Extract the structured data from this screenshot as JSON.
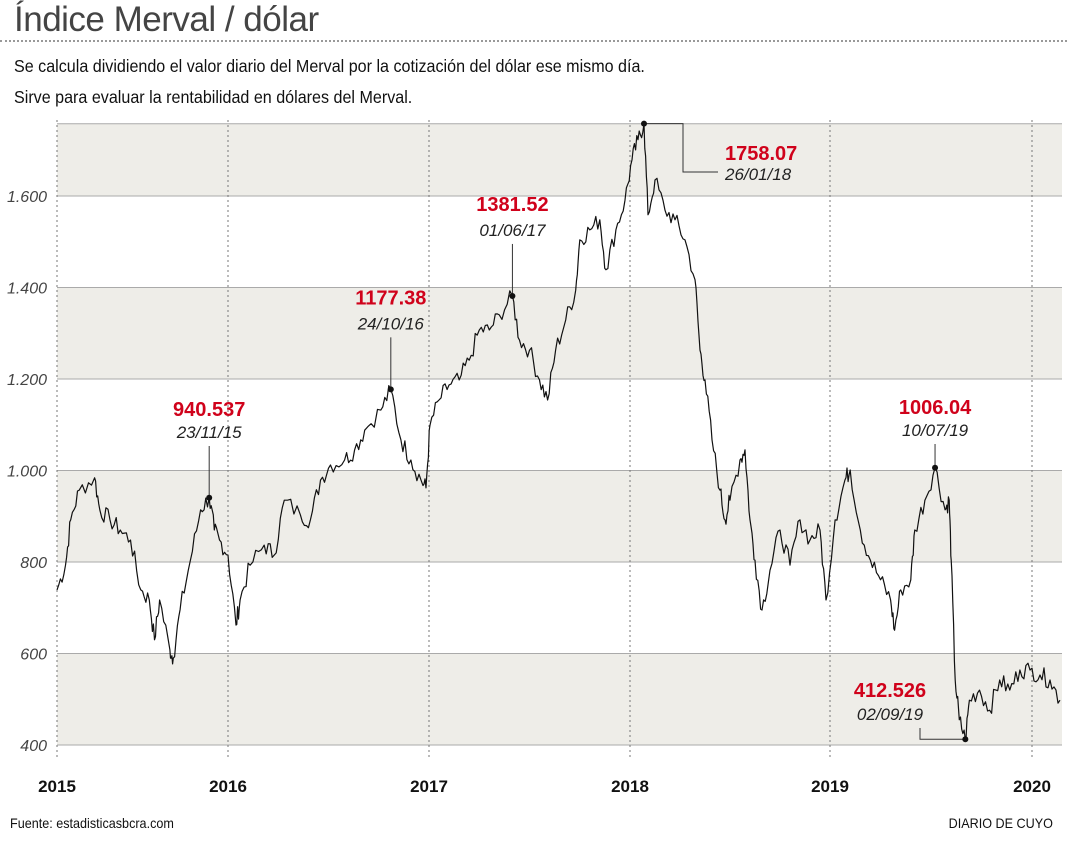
{
  "header": {
    "title": "Índice Merval / dólar",
    "subtitle_1": "Se calcula dividiendo el valor diario del Merval por la cotización del dólar ese mismo día.",
    "subtitle_2": "Sirve para evaluar la rentabilidad en dólares del Merval."
  },
  "footer": {
    "source": "Fuente: estadisticasbcra.com",
    "brand": "DIARIO DE CUYO"
  },
  "colors": {
    "band": "#eeede8",
    "line": "#111111",
    "highlight": "#d0021b"
  },
  "chart_data": {
    "type": "line",
    "title": "Índice Merval / dólar",
    "xlabel": "",
    "ylabel": "",
    "ylim": [
      400,
      1760
    ],
    "xlim": [
      2015.0,
      2020.14
    ],
    "grid": "vertical dotted lines at years; alternating horizontal bands",
    "y_ticks": [
      {
        "value": 400,
        "label": "400"
      },
      {
        "value": 600,
        "label": "600"
      },
      {
        "value": 800,
        "label": "800"
      },
      {
        "value": 1000,
        "label": "1.000"
      },
      {
        "value": 1200,
        "label": "1.200"
      },
      {
        "value": 1400,
        "label": "1.400"
      },
      {
        "value": 1600,
        "label": "1.600"
      }
    ],
    "x_ticks": [
      {
        "value": 2015,
        "label": "2015"
      },
      {
        "value": 2016,
        "label": "2016"
      },
      {
        "value": 2017,
        "label": "2017"
      },
      {
        "value": 2018,
        "label": "2018"
      },
      {
        "value": 2019,
        "label": "2019"
      },
      {
        "value": 2020,
        "label": "2020"
      }
    ],
    "bands": [
      [
        400,
        600
      ],
      [
        800,
        1000
      ],
      [
        1200,
        1400
      ],
      [
        1600,
        1760
      ]
    ],
    "series": [
      {
        "name": "Merval / dólar",
        "x": [
          2015.0,
          2015.05,
          2015.08,
          2015.13,
          2015.22,
          2015.25,
          2015.31,
          2015.37,
          2015.43,
          2015.49,
          2015.54,
          2015.57,
          2015.6,
          2015.66,
          2015.68,
          2015.72,
          2015.78,
          2015.84,
          2015.89,
          2015.92,
          2015.95,
          2016.0,
          2016.04,
          2016.06,
          2016.11,
          2016.18,
          2016.23,
          2016.28,
          2016.36,
          2016.41,
          2016.46,
          2016.51,
          2016.58,
          2016.63,
          2016.68,
          2016.76,
          2016.81,
          2016.86,
          2016.91,
          2016.96,
          2016.985,
          2017.005,
          2017.05,
          2017.1,
          2017.15,
          2017.2,
          2017.25,
          2017.3,
          2017.35,
          2017.415,
          2017.45,
          2017.5,
          2017.55,
          2017.59,
          2017.63,
          2017.68,
          2017.73,
          2017.75,
          2017.8,
          2017.85,
          2017.88,
          2017.93,
          2017.975,
          2018.01,
          2018.04,
          2018.07,
          2018.09,
          2018.125,
          2018.175,
          2018.225,
          2018.275,
          2018.325,
          2018.35,
          2018.375,
          2018.41,
          2018.45,
          2018.475,
          2018.5,
          2018.55,
          2018.575,
          2018.6,
          2018.625,
          2018.66,
          2018.7,
          2018.75,
          2018.8,
          2018.85,
          2018.9,
          2018.95,
          2018.98,
          2019.025,
          2019.074,
          2019.1,
          2019.15,
          2019.2,
          2019.25,
          2019.3,
          2019.32,
          2019.35,
          2019.4,
          2019.42,
          2019.47,
          2019.52,
          2019.57,
          2019.59,
          2019.6,
          2019.62,
          2019.64,
          2019.67,
          2019.69,
          2019.74,
          2019.79,
          2019.84,
          2019.89,
          2019.94,
          2019.99,
          2020.04,
          2020.09,
          2020.14
        ],
        "values": [
          739,
          793,
          892,
          957,
          984,
          914,
          892,
          870,
          848,
          739,
          717,
          630,
          717,
          608,
          590,
          696,
          804,
          914,
          940.537,
          870,
          848,
          815,
          662,
          717,
          793,
          837,
          815,
          935,
          903,
          892,
          979,
          1012,
          1023,
          1045,
          1088,
          1132,
          1177.38,
          1067,
          1023,
          979,
          962,
          1099,
          1154,
          1187,
          1198,
          1241,
          1307,
          1307,
          1340,
          1381.52,
          1285,
          1263,
          1198,
          1154,
          1263,
          1329,
          1394,
          1504,
          1526,
          1548,
          1439,
          1526,
          1591,
          1679,
          1723,
          1758.07,
          1559,
          1635,
          1569,
          1548,
          1504,
          1417,
          1263,
          1198,
          1067,
          957,
          892,
          935,
          1023,
          1045,
          892,
          804,
          695,
          782,
          870,
          793,
          892,
          848,
          870,
          717,
          892,
          979,
          1001,
          870,
          804,
          761,
          717,
          651,
          739,
          761,
          870,
          935,
          1006.04,
          914,
          935,
          804,
          542,
          455,
          412.526,
          498,
          520,
          476,
          542,
          520,
          564,
          564,
          553,
          542,
          498
        ]
      }
    ],
    "annotations": [
      {
        "value": "940.537",
        "date": "23/11/15",
        "x": 2015.89,
        "y": 940.537
      },
      {
        "value": "1177.38",
        "date": "24/10/16",
        "x": 2016.81,
        "y": 1177.38
      },
      {
        "value": "1381.52",
        "date": "01/06/17",
        "x": 2017.415,
        "y": 1381.52
      },
      {
        "value": "1758.07",
        "date": "26/01/18",
        "x": 2018.07,
        "y": 1758.07
      },
      {
        "value": "1006.04",
        "date": "10/07/19",
        "x": 2019.52,
        "y": 1006.04
      },
      {
        "value": "412.526",
        "date": "02/09/19",
        "x": 2019.67,
        "y": 412.526
      }
    ]
  }
}
